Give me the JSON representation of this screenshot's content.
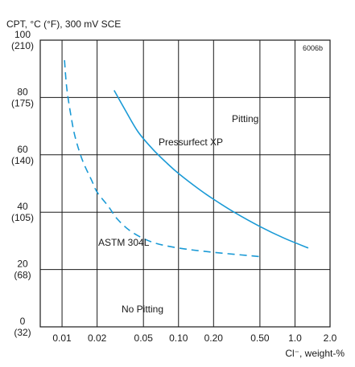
{
  "chart_data": {
    "type": "line",
    "figure_id": "6006b",
    "ylabel": "CPT, °C (°F), 300 mV SCE",
    "xlabel": "Cl⁻, weight-%",
    "x_scale": "log",
    "xlim": [
      0.0065,
      2.0
    ],
    "ylim": [
      0,
      100
    ],
    "x_ticks": [
      {
        "value": 0.01,
        "label": "0.01"
      },
      {
        "value": 0.02,
        "label": "0.02"
      },
      {
        "value": 0.05,
        "label": "0.05"
      },
      {
        "value": 0.1,
        "label": "0.10"
      },
      {
        "value": 0.2,
        "label": "0.20"
      },
      {
        "value": 0.5,
        "label": "0.50"
      },
      {
        "value": 1.0,
        "label": "1.0"
      },
      {
        "value": 2.0,
        "label": "2.0"
      }
    ],
    "y_ticks": [
      {
        "value": 0,
        "c": "0",
        "f": "(32)"
      },
      {
        "value": 20,
        "c": "20",
        "f": "(68)"
      },
      {
        "value": 40,
        "c": "40",
        "f": "(105)"
      },
      {
        "value": 60,
        "c": "60",
        "f": "(140)"
      },
      {
        "value": 80,
        "c": "80",
        "f": "(175)"
      },
      {
        "value": 100,
        "c": "100",
        "f": "(210)"
      }
    ],
    "grid": true,
    "series": [
      {
        "name": "Pressurfect XP",
        "style": "solid",
        "color": "#1a9ad6",
        "x": [
          0.028,
          0.035,
          0.045,
          0.06,
          0.08,
          0.1,
          0.15,
          0.2,
          0.3,
          0.5,
          0.8,
          1.3
        ],
        "y": [
          82.5,
          75.5,
          68,
          62,
          57,
          53.5,
          48,
          44.5,
          40,
          35,
          31,
          27.5
        ]
      },
      {
        "name": "ASTM 304L",
        "style": "dashed",
        "color": "#1a9ad6",
        "x": [
          0.0105,
          0.011,
          0.012,
          0.013,
          0.015,
          0.018,
          0.02,
          0.025,
          0.03,
          0.04,
          0.06,
          0.1,
          0.2,
          0.5
        ],
        "y": [
          93,
          83,
          73,
          66,
          58,
          51,
          47,
          42,
          37.5,
          33,
          29.5,
          27.5,
          26,
          24.5
        ]
      }
    ],
    "annotations": {
      "pitting": "Pitting",
      "no_pitting": "No Pitting"
    }
  }
}
